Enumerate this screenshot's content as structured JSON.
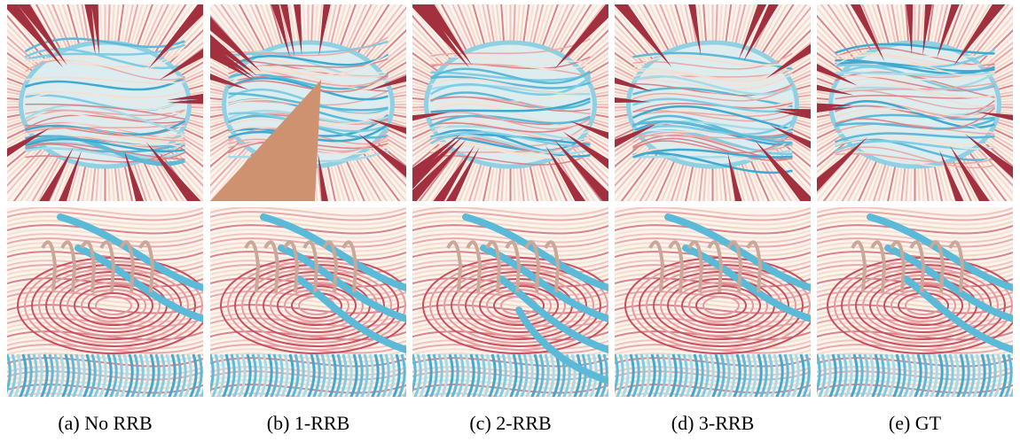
{
  "figure": {
    "captions": [
      "(a) No RRB",
      "(b) 1-RRB",
      "(c) 2-RRB",
      "(d) 3-RRB",
      "(e) GT"
    ]
  }
}
